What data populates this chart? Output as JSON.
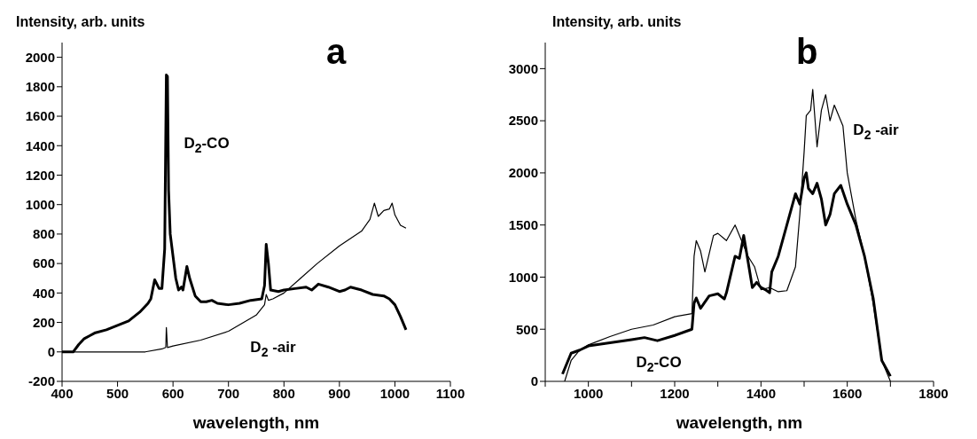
{
  "chart_data": [
    {
      "type": "line",
      "title": "a",
      "xlabel": "wavelength, nm",
      "ylabel": "Intensity, arb. units",
      "xlim": [
        400,
        1100
      ],
      "xticks": [
        400,
        500,
        600,
        700,
        800,
        900,
        1000,
        1100
      ],
      "ylim": [
        -200,
        2100
      ],
      "yticks": [
        -200,
        0,
        200,
        400,
        600,
        800,
        1000,
        1200,
        1400,
        1600,
        1800,
        2000
      ],
      "series": [
        {
          "name": "D$_{2}$-CO",
          "color": "#000000",
          "x": [
            400,
            420,
            430,
            440,
            450,
            460,
            480,
            500,
            520,
            540,
            555,
            560,
            567,
            575,
            580,
            585,
            588,
            590,
            592,
            595,
            600,
            605,
            610,
            615,
            618,
            625,
            630,
            640,
            650,
            660,
            670,
            680,
            700,
            720,
            740,
            760,
            765,
            768,
            772,
            776,
            790,
            800,
            820,
            840,
            850,
            862,
            880,
            900,
            910,
            920,
            940,
            960,
            980,
            990,
            1000,
            1010,
            1020
          ],
          "values": [
            0,
            0,
            50,
            90,
            110,
            130,
            150,
            180,
            210,
            270,
            330,
            360,
            490,
            430,
            430,
            700,
            1880,
            1870,
            1100,
            800,
            650,
            500,
            420,
            440,
            420,
            580,
            500,
            380,
            340,
            340,
            350,
            330,
            320,
            330,
            350,
            360,
            450,
            730,
            600,
            420,
            410,
            420,
            430,
            440,
            420,
            460,
            440,
            410,
            420,
            440,
            420,
            390,
            380,
            360,
            320,
            240,
            150
          ]
        },
        {
          "name": "D$_{2}$ -air",
          "color": "#000000",
          "x": [
            400,
            550,
            580,
            587,
            588,
            590,
            600,
            650,
            700,
            750,
            765,
            768,
            772,
            780,
            800,
            830,
            860,
            900,
            940,
            955,
            963,
            970,
            980,
            990,
            995,
            1000,
            1010,
            1020
          ],
          "values": [
            0,
            0,
            20,
            30,
            165,
            30,
            40,
            80,
            140,
            250,
            320,
            390,
            350,
            360,
            400,
            500,
            600,
            720,
            820,
            900,
            1010,
            920,
            960,
            970,
            1010,
            930,
            860,
            840
          ]
        }
      ]
    },
    {
      "type": "line",
      "title": "b",
      "xlabel": "wavelength, nm",
      "ylabel": "Intensity, arb. units",
      "xlim": [
        900,
        1800
      ],
      "xticks": [
        {
          "value": 900,
          "label": null
        },
        1000,
        {
          "value": 1100,
          "label": null
        },
        1200,
        {
          "value": 1300,
          "label": null
        },
        1400,
        {
          "value": 1500,
          "label": null
        },
        1600,
        {
          "value": 1700,
          "label": null
        },
        1800
      ],
      "ylim": [
        0,
        3250
      ],
      "yticks": [
        0,
        500,
        1000,
        1500,
        2000,
        2500,
        3000
      ],
      "series": [
        {
          "name": "D$_{2}$-CO",
          "color": "#000000",
          "x": [
            940,
            960,
            980,
            1000,
            1050,
            1100,
            1130,
            1160,
            1200,
            1240,
            1245,
            1250,
            1260,
            1280,
            1300,
            1315,
            1320,
            1340,
            1350,
            1360,
            1370,
            1380,
            1390,
            1400,
            1410,
            1420,
            1425,
            1440,
            1460,
            1480,
            1490,
            1500,
            1505,
            1510,
            1520,
            1530,
            1540,
            1550,
            1560,
            1570,
            1585,
            1600,
            1620,
            1640,
            1660,
            1670,
            1680,
            1700
          ],
          "values": [
            70,
            270,
            300,
            340,
            370,
            400,
            420,
            390,
            440,
            500,
            750,
            800,
            700,
            820,
            840,
            790,
            850,
            1200,
            1180,
            1400,
            1150,
            900,
            950,
            900,
            880,
            850,
            1050,
            1200,
            1500,
            1800,
            1700,
            1950,
            2000,
            1850,
            1800,
            1900,
            1750,
            1500,
            1600,
            1800,
            1880,
            1700,
            1500,
            1200,
            800,
            500,
            200,
            50
          ]
        },
        {
          "name": "D$_{2}$ -air",
          "color": "#000000",
          "x": [
            945,
            960,
            980,
            1000,
            1050,
            1100,
            1150,
            1200,
            1240,
            1245,
            1250,
            1260,
            1270,
            1290,
            1300,
            1320,
            1340,
            1350,
            1370,
            1385,
            1400,
            1420,
            1440,
            1460,
            1480,
            1490,
            1500,
            1505,
            1515,
            1520,
            1530,
            1540,
            1550,
            1560,
            1570,
            1580,
            1590,
            1600,
            1620,
            1640,
            1660,
            1680,
            1700
          ],
          "values": [
            0,
            200,
            300,
            350,
            430,
            500,
            540,
            620,
            650,
            1200,
            1350,
            1250,
            1050,
            1400,
            1420,
            1350,
            1500,
            1400,
            1200,
            1100,
            880,
            900,
            860,
            870,
            1100,
            1600,
            2200,
            2550,
            2600,
            2800,
            2250,
            2600,
            2750,
            2500,
            2650,
            2550,
            2450,
            2000,
            1550,
            1200,
            750,
            200,
            0
          ]
        }
      ]
    }
  ]
}
